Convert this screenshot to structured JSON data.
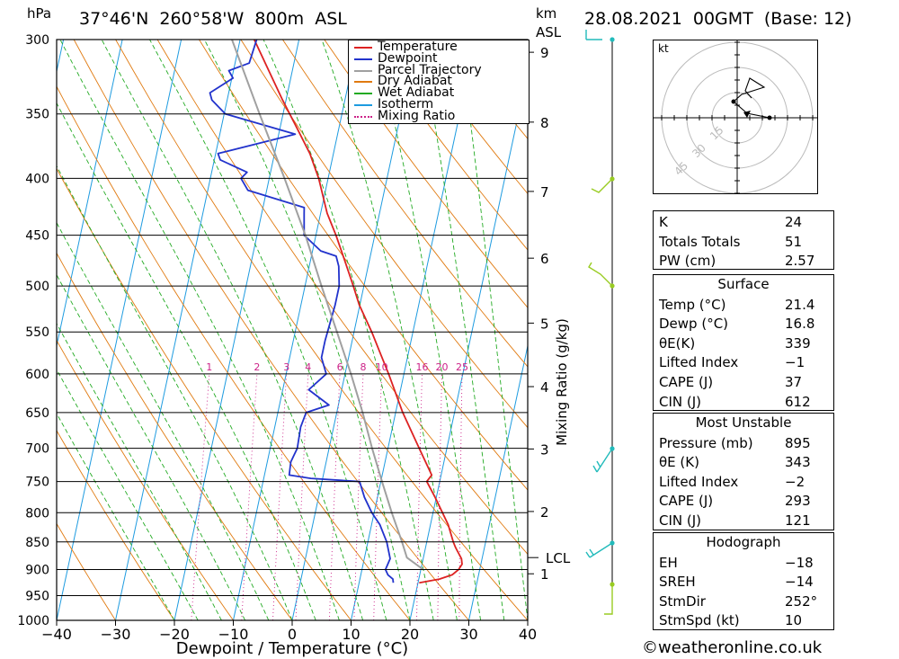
{
  "header": {
    "pressure_unit": "hPa",
    "location": "37°46'N  260°58'W  800m  ASL",
    "km_label": "km",
    "asl_label": "ASL",
    "datetime": "28.08.2021  00GMT  (Base: 12)"
  },
  "legend": [
    {
      "label": "Temperature",
      "color": "#dd2222"
    },
    {
      "label": "Dewpoint",
      "color": "#2233cc"
    },
    {
      "label": "Parcel Trajectory",
      "color": "#a0a0a0"
    },
    {
      "label": "Dry Adiabat",
      "color": "#e07a10"
    },
    {
      "label": "Wet Adiabat",
      "color": "#22aa22"
    },
    {
      "label": "Isotherm",
      "color": "#1e9be0"
    },
    {
      "label": "Mixing Ratio",
      "color": "#cc2288"
    }
  ],
  "chart_data": {
    "type": "line",
    "title": "37°46'N  260°58'W  800m  ASL",
    "xlabel": "Dewpoint / Temperature (°C)",
    "ylabel": "hPa",
    "y2label": "Mixing Ratio (g/kg)",
    "xlim": [
      -40,
      40
    ],
    "ylim": [
      1000,
      300
    ],
    "x_ticks": [
      "−40",
      "−30",
      "−20",
      "−10",
      "0",
      "10",
      "20",
      "30",
      "40"
    ],
    "pressure_levels": [
      300,
      350,
      400,
      450,
      500,
      550,
      600,
      650,
      700,
      750,
      800,
      850,
      900,
      950,
      1000
    ],
    "km_ticks": [
      {
        "km": "1",
        "p": 908
      },
      {
        "km": "2",
        "p": 798
      },
      {
        "km": "3",
        "p": 701
      },
      {
        "km": "4",
        "p": 616
      },
      {
        "km": "5",
        "p": 540
      },
      {
        "km": "6",
        "p": 472
      },
      {
        "km": "7",
        "p": 411
      },
      {
        "km": "8",
        "p": 356
      },
      {
        "km": "9",
        "p": 308
      }
    ],
    "lcl": {
      "label": "LCL",
      "p": 878
    },
    "mixing_ratio_labels": [
      "1",
      "2",
      "3",
      "4",
      "6",
      "8",
      "10",
      "16",
      "20",
      "25"
    ],
    "mixing_ratios": [
      1,
      2,
      3,
      4,
      6,
      8,
      10,
      16,
      20,
      25
    ],
    "series": [
      {
        "name": "Temperature",
        "color": "#dd2222",
        "points": [
          [
            925,
            20.2
          ],
          [
            918,
            23.5
          ],
          [
            910,
            25.5
          ],
          [
            900,
            26.4
          ],
          [
            890,
            26.8
          ],
          [
            880,
            26.5
          ],
          [
            860,
            25.1
          ],
          [
            850,
            24.5
          ],
          [
            820,
            23.0
          ],
          [
            800,
            21.6
          ],
          [
            775,
            19.8
          ],
          [
            750,
            17.8
          ],
          [
            740,
            18.4
          ],
          [
            700,
            15.3
          ],
          [
            650,
            11.2
          ],
          [
            600,
            7.4
          ],
          [
            570,
            4.8
          ],
          [
            550,
            3.0
          ],
          [
            520,
            -0.1
          ],
          [
            500,
            -1.8
          ],
          [
            470,
            -4.6
          ],
          [
            450,
            -6.6
          ],
          [
            430,
            -8.9
          ],
          [
            400,
            -11.6
          ],
          [
            380,
            -14.0
          ],
          [
            360,
            -17.2
          ],
          [
            340,
            -20.6
          ],
          [
            320,
            -24.0
          ],
          [
            300,
            -27.6
          ]
        ]
      },
      {
        "name": "Dewpoint",
        "color": "#2233cc",
        "points": [
          [
            925,
            15.8
          ],
          [
            918,
            15.6
          ],
          [
            910,
            14.6
          ],
          [
            900,
            14.0
          ],
          [
            880,
            14.4
          ],
          [
            850,
            13.2
          ],
          [
            820,
            11.4
          ],
          [
            800,
            9.6
          ],
          [
            775,
            7.8
          ],
          [
            750,
            6.4
          ],
          [
            745,
            -2.0
          ],
          [
            740,
            -5.8
          ],
          [
            720,
            -6.0
          ],
          [
            700,
            -5.4
          ],
          [
            670,
            -5.6
          ],
          [
            650,
            -5.2
          ],
          [
            640,
            -1.6
          ],
          [
            620,
            -5.6
          ],
          [
            600,
            -3.2
          ],
          [
            580,
            -4.6
          ],
          [
            560,
            -4.6
          ],
          [
            540,
            -4.4
          ],
          [
            520,
            -4.2
          ],
          [
            500,
            -4.2
          ],
          [
            480,
            -5.0
          ],
          [
            470,
            -5.8
          ],
          [
            465,
            -8.6
          ],
          [
            450,
            -12.0
          ],
          [
            430,
            -12.8
          ],
          [
            425,
            -13.0
          ],
          [
            410,
            -23.2
          ],
          [
            400,
            -24.8
          ],
          [
            395,
            -24.0
          ],
          [
            385,
            -29.0
          ],
          [
            380,
            -29.6
          ],
          [
            365,
            -17.2
          ],
          [
            350,
            -29.8
          ],
          [
            340,
            -32.6
          ],
          [
            335,
            -33.2
          ],
          [
            325,
            -29.8
          ],
          [
            320,
            -30.8
          ],
          [
            315,
            -27.6
          ],
          [
            300,
            -27.2
          ]
        ]
      },
      {
        "name": "Parcel Trajectory",
        "color": "#a0a0a0",
        "points": [
          [
            900,
            20.4
          ],
          [
            878,
            17.2
          ],
          [
            850,
            15.8
          ],
          [
            800,
            13.0
          ],
          [
            750,
            10.2
          ],
          [
            700,
            7.3
          ],
          [
            650,
            4.4
          ],
          [
            600,
            1.0
          ],
          [
            550,
            -2.9
          ],
          [
            500,
            -7.2
          ],
          [
            450,
            -11.8
          ],
          [
            400,
            -17.4
          ],
          [
            350,
            -24.0
          ],
          [
            300,
            -31.4
          ]
        ]
      }
    ]
  },
  "hodograph": {
    "unit": "kt",
    "ring_labels": [
      "15",
      "30",
      "45"
    ]
  },
  "indices": [
    {
      "label": "K",
      "value": "24"
    },
    {
      "label": "Totals Totals",
      "value": "51"
    },
    {
      "label": "PW (cm)",
      "value": "2.57"
    }
  ],
  "surface": {
    "title": "Surface",
    "rows": [
      {
        "label": "Temp (°C)",
        "value": "21.4"
      },
      {
        "label": "Dewp (°C)",
        "value": "16.8"
      },
      {
        "label": "θE(K)",
        "value": "339"
      },
      {
        "label": "Lifted Index",
        "value": "−1"
      },
      {
        "label": "CAPE (J)",
        "value": "37"
      },
      {
        "label": "CIN (J)",
        "value": "612"
      }
    ]
  },
  "most_unstable": {
    "title": "Most Unstable",
    "rows": [
      {
        "label": "Pressure (mb)",
        "value": "895"
      },
      {
        "label": "θE (K)",
        "value": "343"
      },
      {
        "label": "Lifted Index",
        "value": "−2"
      },
      {
        "label": "CAPE (J)",
        "value": "293"
      },
      {
        "label": "CIN (J)",
        "value": "121"
      }
    ]
  },
  "hodograph_table": {
    "title": "Hodograph",
    "rows": [
      {
        "label": "EH",
        "value": "−18"
      },
      {
        "label": "SREH",
        "value": "−14"
      },
      {
        "label": "StmDir",
        "value": "252°"
      },
      {
        "label": "StmSpd (kt)",
        "value": "10"
      }
    ]
  },
  "copyright": "©weatheronline.co.uk"
}
